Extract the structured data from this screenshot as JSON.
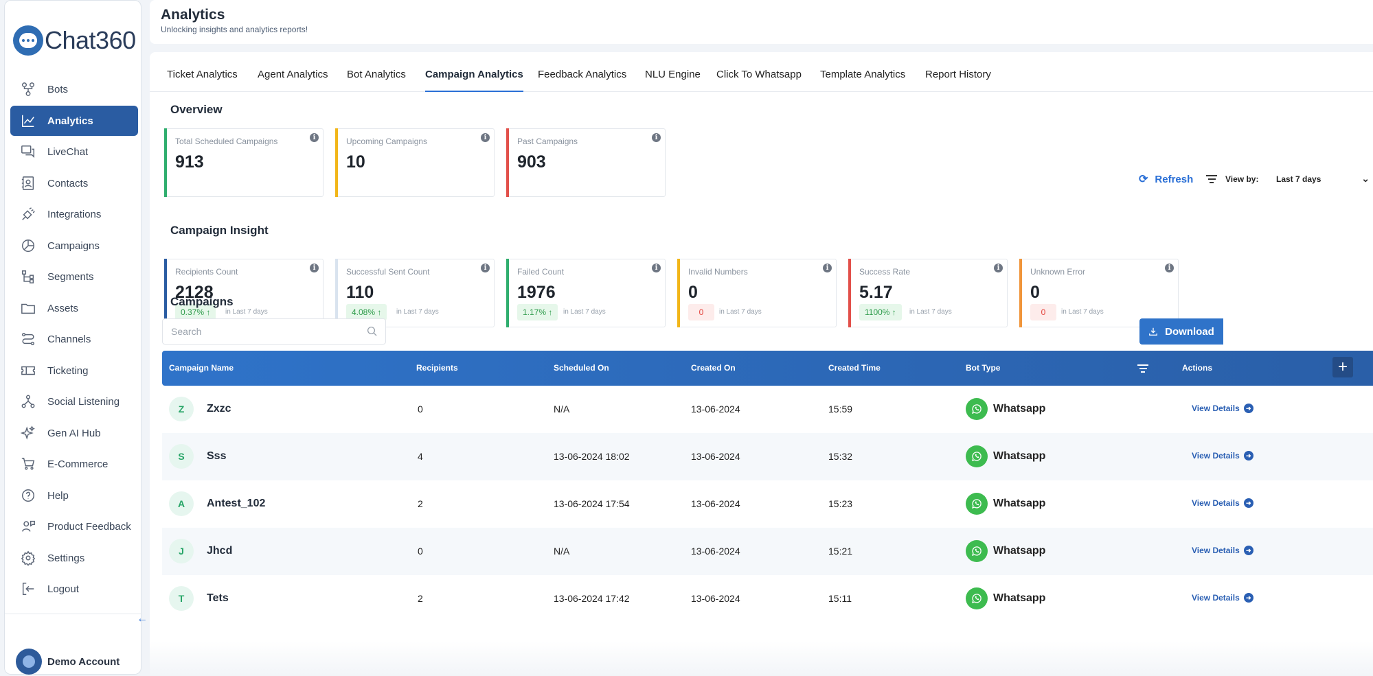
{
  "brand": {
    "name": "Chat360",
    "accent": "#2a5ca2"
  },
  "sidebar": {
    "items": [
      {
        "label": "Bots",
        "icon": "bots-icon"
      },
      {
        "label": "Analytics",
        "icon": "analytics-icon",
        "active": true
      },
      {
        "label": "LiveChat",
        "icon": "livechat-icon"
      },
      {
        "label": "Contacts",
        "icon": "contacts-icon"
      },
      {
        "label": "Integrations",
        "icon": "integrations-icon"
      },
      {
        "label": "Campaigns",
        "icon": "campaigns-icon"
      },
      {
        "label": "Segments",
        "icon": "segments-icon"
      },
      {
        "label": "Assets",
        "icon": "assets-icon"
      },
      {
        "label": "Channels",
        "icon": "channels-icon"
      },
      {
        "label": "Ticketing",
        "icon": "ticketing-icon"
      },
      {
        "label": "Social Listening",
        "icon": "social-listening-icon"
      },
      {
        "label": "Gen AI Hub",
        "icon": "gen-ai-icon"
      },
      {
        "label": "E-Commerce",
        "icon": "cart-icon"
      },
      {
        "label": "Help",
        "icon": "help-icon"
      },
      {
        "label": "Product Feedback",
        "icon": "feedback-icon"
      },
      {
        "label": "Settings",
        "icon": "gear-icon"
      },
      {
        "label": "Logout",
        "icon": "logout-icon"
      }
    ],
    "account": "Demo Account"
  },
  "header": {
    "title": "Analytics",
    "subtitle": "Unlocking insights and analytics reports!"
  },
  "tabs": [
    {
      "label": "Ticket Analytics"
    },
    {
      "label": "Agent Analytics"
    },
    {
      "label": "Bot Analytics"
    },
    {
      "label": "Campaign Analytics",
      "active": true
    },
    {
      "label": "Feedback Analytics"
    },
    {
      "label": "NLU Engine"
    },
    {
      "label": "Click To Whatsapp"
    },
    {
      "label": "Template Analytics"
    },
    {
      "label": "Report History"
    }
  ],
  "overview": {
    "title": "Overview",
    "cards": [
      {
        "label": "Total Scheduled Campaigns",
        "value": "913",
        "color": "#2fae6e"
      },
      {
        "label": "Upcoming Campaigns",
        "value": "10",
        "color": "#f2b619"
      },
      {
        "label": "Past Campaigns",
        "value": "903",
        "color": "#e2504a"
      }
    ]
  },
  "insight": {
    "title": "Campaign Insight",
    "refresh_label": "Refresh",
    "view_by_label": "View by:",
    "view_by_value": "Last 7 days",
    "period_label": "in Last 7 days",
    "cards": [
      {
        "label": "Recipients Count",
        "value": "2128",
        "delta": "0.37% ↑",
        "trend": "up",
        "color": "#2a5ca2"
      },
      {
        "label": "Successful Sent Count",
        "value": "110",
        "delta": "4.08% ↑",
        "trend": "up",
        "color": "#d9e3ef"
      },
      {
        "label": "Failed Count",
        "value": "1976",
        "delta": "1.17% ↑",
        "trend": "up",
        "color": "#2fae6e"
      },
      {
        "label": "Invalid Numbers",
        "value": "0",
        "delta": "0",
        "trend": "zero",
        "color": "#f2b619"
      },
      {
        "label": "Success Rate",
        "value": "5.17",
        "delta": "1100% ↑",
        "trend": "up",
        "color": "#e2504a"
      },
      {
        "label": "Unknown Error",
        "value": "0",
        "delta": "0",
        "trend": "zero",
        "color": "#f0953a"
      }
    ]
  },
  "campaigns": {
    "title": "Campaigns",
    "search_placeholder": "Search",
    "download_label": "Download",
    "columns": [
      "Campaign Name",
      "Recipients",
      "Scheduled On",
      "Created On",
      "Created Time",
      "Bot Type",
      "Actions"
    ],
    "action_label": "View Details",
    "rows": [
      {
        "initial": "Z",
        "name": "Zxzc",
        "recipients": "0",
        "scheduled": "N/A",
        "created_on": "13-06-2024",
        "created_time": "15:59",
        "bot": "Whatsapp"
      },
      {
        "initial": "S",
        "name": "Sss",
        "recipients": "4",
        "scheduled": "13-06-2024 18:02",
        "created_on": "13-06-2024",
        "created_time": "15:32",
        "bot": "Whatsapp"
      },
      {
        "initial": "A",
        "name": "Antest_102",
        "recipients": "2",
        "scheduled": "13-06-2024 17:54",
        "created_on": "13-06-2024",
        "created_time": "15:23",
        "bot": "Whatsapp"
      },
      {
        "initial": "J",
        "name": "Jhcd",
        "recipients": "0",
        "scheduled": "N/A",
        "created_on": "13-06-2024",
        "created_time": "15:21",
        "bot": "Whatsapp"
      },
      {
        "initial": "T",
        "name": "Tets",
        "recipients": "2",
        "scheduled": "13-06-2024 17:42",
        "created_on": "13-06-2024",
        "created_time": "15:11",
        "bot": "Whatsapp"
      }
    ]
  }
}
